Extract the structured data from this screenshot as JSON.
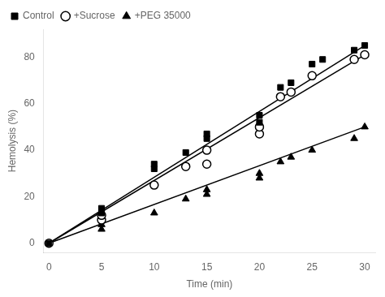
{
  "chart_data": {
    "type": "scatter",
    "xlabel": "Time (min)",
    "ylabel": "Hemolysis (%)",
    "xlim": [
      -0.5,
      31
    ],
    "ylim": [
      -4,
      92
    ],
    "xticks": [
      0,
      5,
      10,
      15,
      20,
      25,
      30
    ],
    "yticks": [
      0,
      20,
      40,
      60,
      80
    ],
    "grid": false,
    "legend": "upper left",
    "series": [
      {
        "type": "line",
        "color": "black",
        "x": [
          0,
          30
        ],
        "values": [
          0,
          85
        ]
      },
      {
        "type": "line",
        "color": "black",
        "x": [
          0,
          30
        ],
        "values": [
          0,
          81
        ]
      },
      {
        "type": "line",
        "color": "black",
        "x": [
          0,
          30
        ],
        "values": [
          0,
          50
        ]
      },
      {
        "name": "Control",
        "type": "scatter",
        "marker": "square",
        "color": "black",
        "x": [
          0,
          5,
          5,
          10,
          10,
          13,
          15,
          15,
          20,
          20,
          22,
          23,
          25,
          26,
          29,
          30
        ],
        "values": [
          0,
          13,
          15,
          32,
          34,
          39,
          45,
          47,
          52,
          55,
          67,
          69,
          77,
          79,
          83,
          85
        ]
      },
      {
        "name": "+Sucrose",
        "type": "scatter",
        "marker": "open circle",
        "color": "black",
        "x": [
          0,
          5,
          5,
          10,
          13,
          15,
          15,
          20,
          20,
          22,
          23,
          25,
          29,
          30
        ],
        "values": [
          0,
          10,
          12,
          25,
          33,
          34,
          40,
          47,
          50,
          63,
          65,
          72,
          79,
          81
        ]
      },
      {
        "name": "+PEG 35000",
        "type": "scatter",
        "marker": "triangle",
        "color": "black",
        "x": [
          0,
          5,
          5,
          10,
          13,
          15,
          15,
          20,
          20,
          22,
          23,
          25,
          29,
          30
        ],
        "values": [
          0,
          6,
          8,
          13,
          19,
          21,
          23,
          28,
          30,
          35,
          37,
          40,
          45,
          50
        ]
      }
    ]
  }
}
